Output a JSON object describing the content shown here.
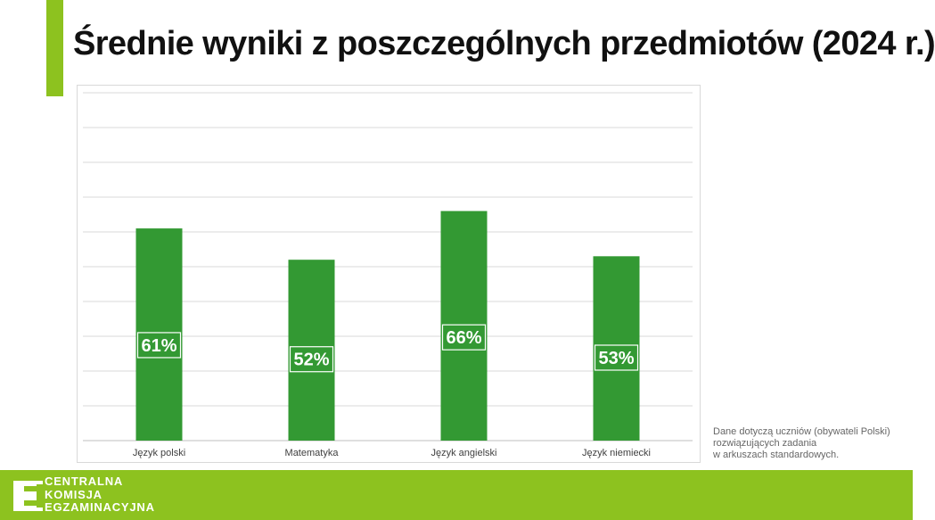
{
  "header": {
    "title": "Średnie wyniki z poszczególnych przedmiotów (2024 r.)",
    "accent_color": "#8dc21f"
  },
  "chart_data": {
    "type": "bar",
    "categories": [
      "Język polski",
      "Matematyka",
      "Język angielski",
      "Język niemiecki"
    ],
    "values": [
      61,
      52,
      66,
      53
    ],
    "value_labels": [
      "61%",
      "52%",
      "66%",
      "53%"
    ],
    "ylim": [
      0,
      100
    ],
    "grid": true,
    "bar_color": "#339933"
  },
  "note": {
    "lines": [
      "Dane dotyczą uczniów (obywateli Polski)",
      "rozwiązujących zadania",
      "w arkuszach standardowych."
    ]
  },
  "footer": {
    "logo_text": [
      "CENTRALNA",
      "KOMISJA",
      "EGZAMINACYJNA"
    ],
    "logo_icon": "cke-logo-icon",
    "background_color": "#8dc21f"
  }
}
